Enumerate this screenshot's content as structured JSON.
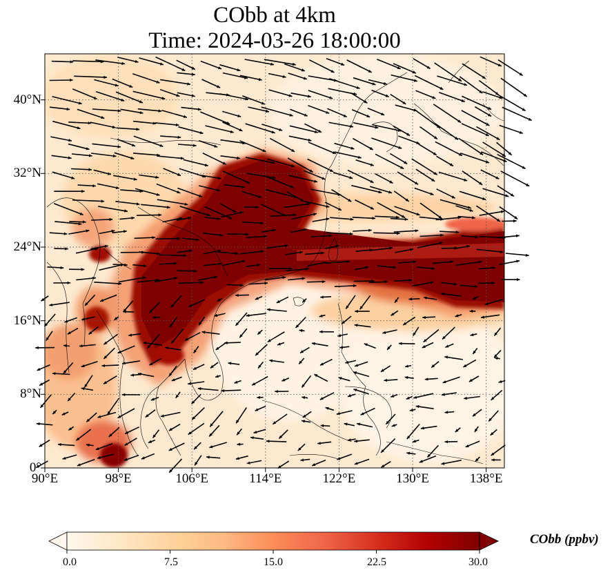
{
  "title": {
    "line1": "CObb at 4km",
    "line2": "Time: 2024-03-26 18:00:00"
  },
  "map": {
    "projection": "PlateCarree",
    "lon_range": [
      90,
      140
    ],
    "lat_range": [
      0,
      45
    ],
    "gridlines": "dotted",
    "lon_ticks": [
      "90°E",
      "98°E",
      "106°E",
      "114°E",
      "122°E",
      "130°E",
      "138°E"
    ],
    "lat_ticks": [
      "0°",
      "8°N",
      "16°N",
      "24°N",
      "32°N",
      "40°N"
    ],
    "variable": "CObb",
    "height": "4km",
    "wind_vectors": true,
    "coastlines": true,
    "colormap": "OrRd"
  },
  "colorbar": {
    "label": "CObb (ppbv)",
    "ticks": [
      "0.0",
      "7.5",
      "15.0",
      "22.5",
      "30.0"
    ],
    "range": [
      0,
      30
    ],
    "extend": "both",
    "colors": [
      "#fff7ec",
      "#fee8c8",
      "#fdd49e",
      "#fdbb84",
      "#fc8d59",
      "#ef6548",
      "#d7301f",
      "#b30000",
      "#7f0000"
    ]
  }
}
